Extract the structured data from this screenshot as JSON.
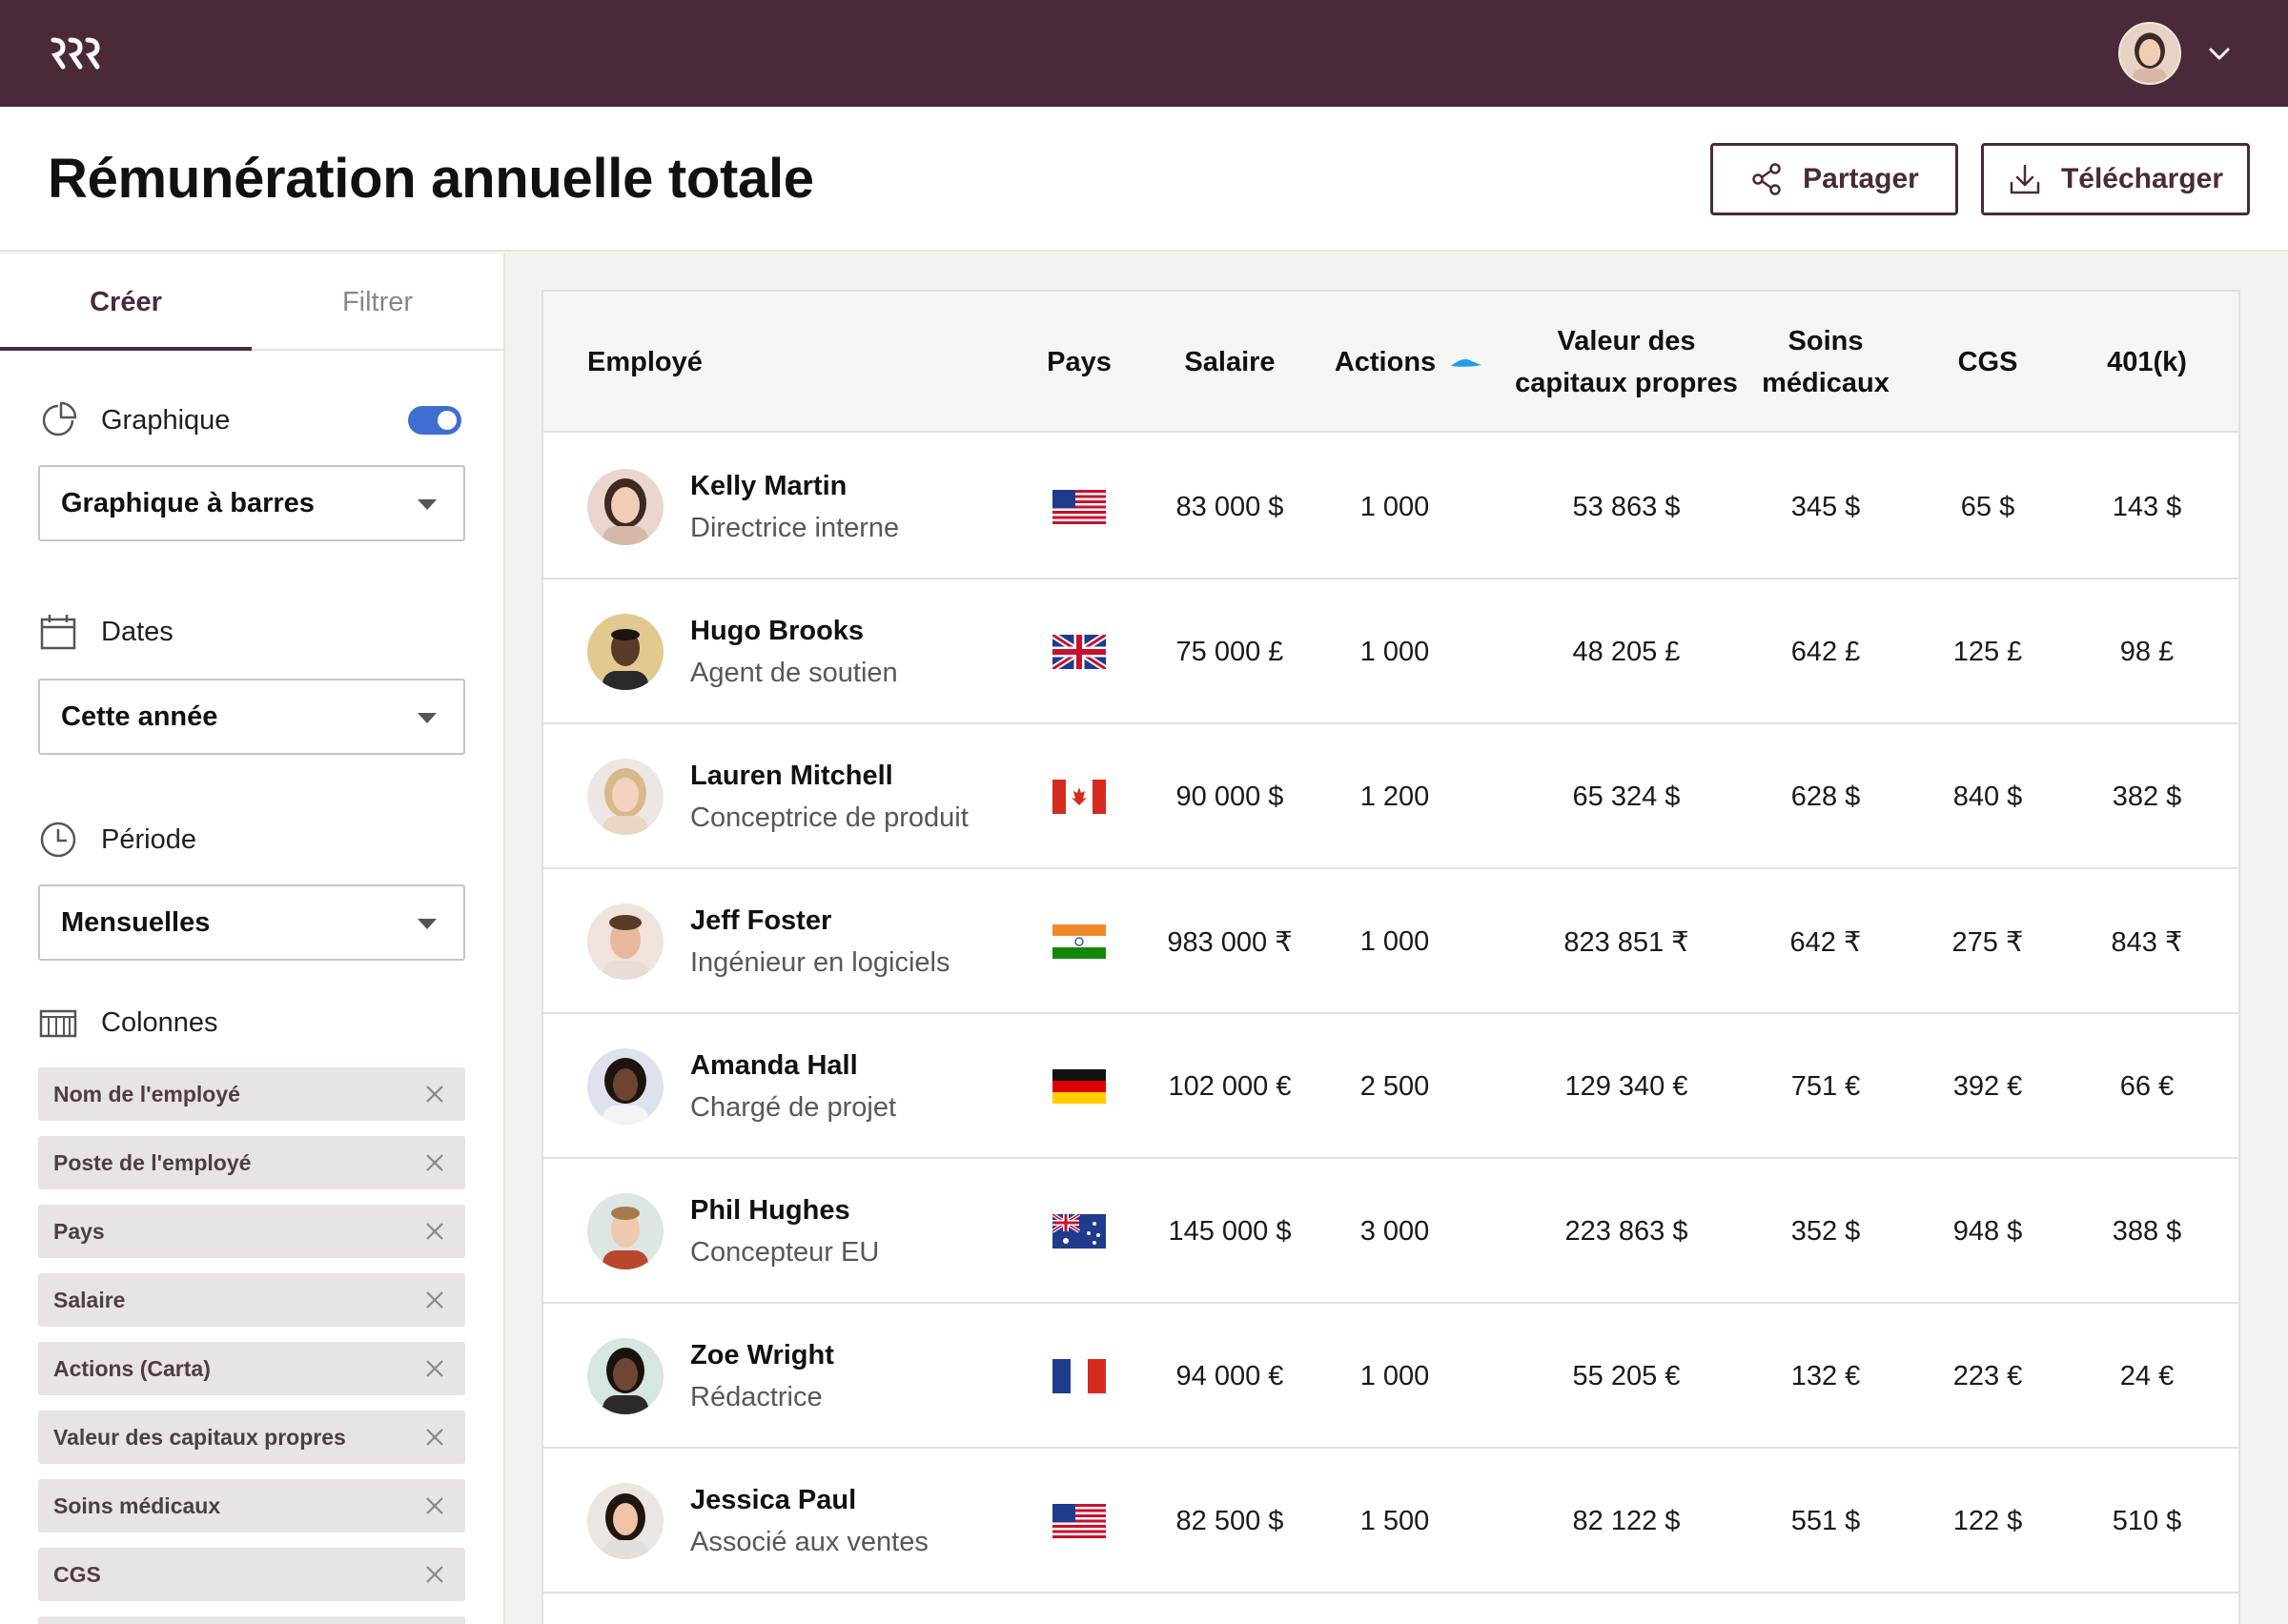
{
  "header": {
    "title": "Rémunération annuelle totale",
    "share_label": "Partager",
    "download_label": "Télécharger"
  },
  "sidebar": {
    "tabs": [
      {
        "label": "Créer",
        "active": true
      },
      {
        "label": "Filtrer",
        "active": false
      }
    ],
    "chart": {
      "label": "Graphique",
      "enabled": true,
      "select": "Graphique à barres"
    },
    "dates": {
      "label": "Dates",
      "select": "Cette année"
    },
    "period": {
      "label": "Période",
      "select": "Mensuelles"
    },
    "columns": {
      "label": "Colonnes",
      "chips": [
        "Nom de l'employé",
        "Poste de l'employé",
        "Pays",
        "Salaire",
        "Actions (Carta)",
        "Valeur des capitaux propres",
        "Soins médicaux",
        "CGS"
      ]
    }
  },
  "table": {
    "headers": {
      "employee": "Employé",
      "country": "Pays",
      "salary": "Salaire",
      "shares": "Actions",
      "equity_1": "Valeur des",
      "equity_2": "capitaux propres",
      "medical_1": "Soins",
      "medical_2": "médicaux",
      "cgs": "CGS",
      "k401": "401(k)"
    },
    "rows": [
      {
        "name": "Kelly Martin",
        "role": "Directrice interne",
        "flag": "us",
        "salary": "83 000 $",
        "shares": "1 000",
        "equity": "53 863 $",
        "medical": "345 $",
        "cgs": "65 $",
        "k401": "143 $"
      },
      {
        "name": "Hugo Brooks",
        "role": "Agent de soutien",
        "flag": "uk",
        "salary": "75 000 £",
        "shares": "1 000",
        "equity": "48 205 £",
        "medical": "642 £",
        "cgs": "125 £",
        "k401": "98 £"
      },
      {
        "name": "Lauren Mitchell",
        "role": "Conceptrice de produit",
        "flag": "ca",
        "salary": "90 000 $",
        "shares": "1 200",
        "equity": "65 324 $",
        "medical": "628 $",
        "cgs": "840 $",
        "k401": "382 $"
      },
      {
        "name": "Jeff Foster",
        "role": "Ingénieur en logiciels",
        "flag": "in",
        "salary": "983 000 ₹",
        "shares": "1 000",
        "equity": "823 851 ₹",
        "medical": "642 ₹",
        "cgs": "275 ₹",
        "k401": "843 ₹"
      },
      {
        "name": "Amanda Hall",
        "role": "Chargé de projet",
        "flag": "de",
        "salary": "102 000 €",
        "shares": "2 500",
        "equity": "129 340 €",
        "medical": "751 €",
        "cgs": "392 €",
        "k401": "66 €"
      },
      {
        "name": "Phil Hughes",
        "role": "Concepteur EU",
        "flag": "au",
        "salary": "145 000 $",
        "shares": "3 000",
        "equity": "223 863 $",
        "medical": "352 $",
        "cgs": "948 $",
        "k401": "388 $"
      },
      {
        "name": "Zoe Wright",
        "role": "Rédactrice",
        "flag": "fr",
        "salary": "94 000 €",
        "shares": "1 000",
        "equity": "55 205 €",
        "medical": "132 €",
        "cgs": "223 €",
        "k401": "24 €"
      },
      {
        "name": "Jessica Paul",
        "role": "Associé aux ventes",
        "flag": "us",
        "salary": "82 500 $",
        "shares": "1 500",
        "equity": "82 122 $",
        "medical": "551 $",
        "cgs": "122 $",
        "k401": "510 $"
      }
    ]
  },
  "colors": {
    "brand": "#4a2a3a",
    "toggle": "#3e6ed1",
    "sort_accent": "#1e9ee8"
  }
}
